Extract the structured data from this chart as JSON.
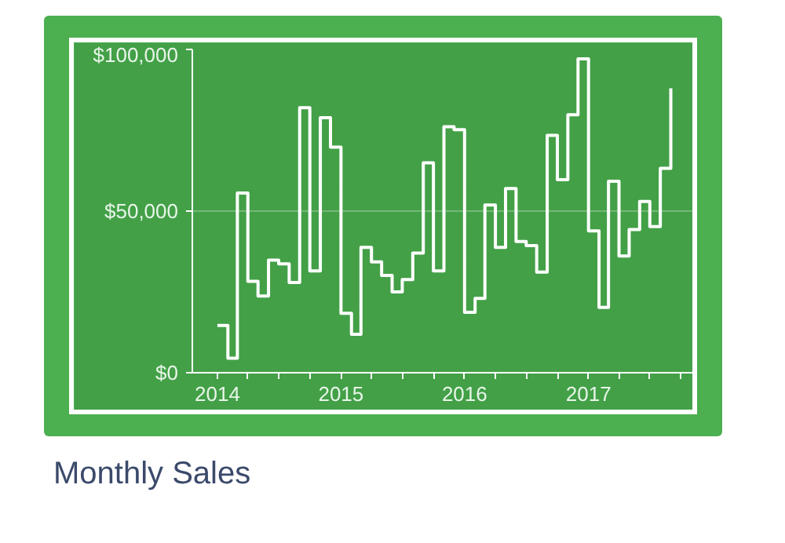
{
  "chart_data": {
    "type": "step",
    "title": "Monthly Sales",
    "x": [
      "2014-01",
      "2014-02",
      "2014-03",
      "2014-04",
      "2014-05",
      "2014-06",
      "2014-07",
      "2014-08",
      "2014-09",
      "2014-10",
      "2014-11",
      "2014-12",
      "2015-01",
      "2015-02",
      "2015-03",
      "2015-04",
      "2015-05",
      "2015-06",
      "2015-07",
      "2015-08",
      "2015-09",
      "2015-10",
      "2015-11",
      "2015-12",
      "2016-01",
      "2016-02",
      "2016-03",
      "2016-04",
      "2016-05",
      "2016-06",
      "2016-07",
      "2016-08",
      "2016-09",
      "2016-10",
      "2016-11",
      "2016-12",
      "2017-01",
      "2017-02",
      "2017-03",
      "2017-04",
      "2017-05",
      "2017-06",
      "2017-07",
      "2017-08",
      "2017-09"
    ],
    "series": [
      {
        "color": "#ffffff",
        "values": [
          14600,
          4500,
          55600,
          28300,
          23700,
          34800,
          33700,
          27900,
          82000,
          31500,
          78900,
          69800,
          18400,
          11900,
          38800,
          34300,
          30100,
          25000,
          28800,
          37000,
          64900,
          31500,
          76100,
          75200,
          18700,
          23000,
          51900,
          38800,
          57000,
          40600,
          39300,
          31100,
          73400,
          59700,
          79800,
          97100,
          43900,
          20200,
          59200,
          36100,
          44300,
          53000,
          45200,
          63200,
          88000
        ]
      }
    ],
    "xlim": [
      "2013-10-19",
      "2017-11-06"
    ],
    "xticks": [
      {
        "value": "2014-01-01",
        "label": "2014"
      },
      {
        "value": "2014-04-01",
        "label": null
      },
      {
        "value": "2014-07-01",
        "label": null
      },
      {
        "value": "2014-10-01",
        "label": null
      },
      {
        "value": "2015-01-01",
        "label": "2015"
      },
      {
        "value": "2015-04-01",
        "label": null
      },
      {
        "value": "2015-07-01",
        "label": null
      },
      {
        "value": "2015-10-01",
        "label": null
      },
      {
        "value": "2016-01-01",
        "label": "2016"
      },
      {
        "value": "2016-04-01",
        "label": null
      },
      {
        "value": "2016-07-01",
        "label": null
      },
      {
        "value": "2016-10-01",
        "label": null
      },
      {
        "value": "2017-01-01",
        "label": "2017"
      },
      {
        "value": "2017-04-01",
        "label": null
      },
      {
        "value": "2017-07-01",
        "label": null
      },
      {
        "value": "2017-10-01",
        "label": null
      }
    ],
    "ylim": [
      0,
      100000
    ],
    "yticks": [
      {
        "value": 0,
        "label": "$0"
      },
      {
        "value": 50000,
        "label": "$50,000"
      },
      {
        "value": 100000,
        "label": "$100,000"
      }
    ],
    "grid": "y",
    "marker": "none",
    "line_style": "solid"
  }
}
